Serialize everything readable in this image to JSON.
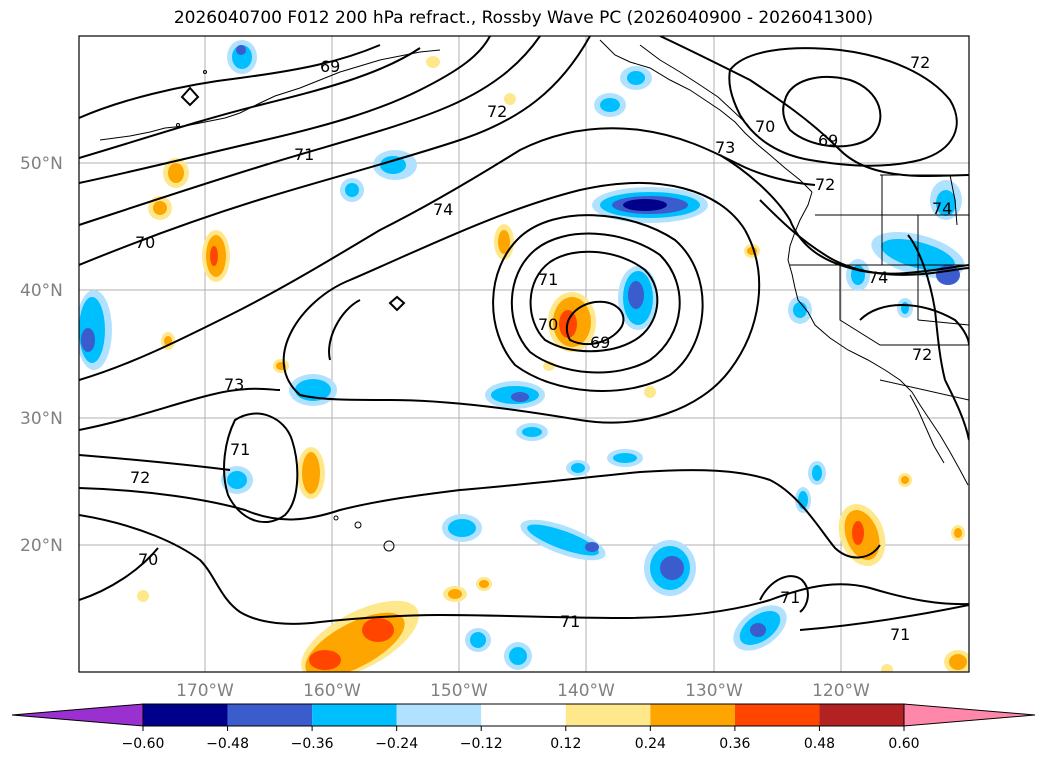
{
  "title": "2026040700 F012 200 hPa refract., Rossby Wave PC (2026040900 - 2026041300)",
  "lat_labels": [
    "50°N",
    "40°N",
    "30°N",
    "20°N"
  ],
  "lon_labels": [
    "170°W",
    "160°W",
    "150°W",
    "140°W",
    "130°W",
    "120°W"
  ],
  "contour_labels": [
    "69",
    "72",
    "71",
    "70",
    "74",
    "71",
    "70",
    "69",
    "73",
    "71",
    "72",
    "70",
    "71",
    "71",
    "71",
    "72",
    "70",
    "69",
    "73",
    "72",
    "74",
    "74",
    "72"
  ],
  "colorbar": {
    "ticks": [
      "−0.60",
      "−0.48",
      "−0.36",
      "−0.24",
      "−0.12",
      "0.12",
      "0.24",
      "0.36",
      "0.48",
      "0.60"
    ],
    "colors": [
      "#9b30d0",
      "#00008b",
      "#3a5ccc",
      "#00bfff",
      "#b0e2ff",
      "#ffffff",
      "#ffe88c",
      "#ffa500",
      "#ff4500",
      "#b22222",
      "#ff88aa"
    ]
  },
  "colors": {
    "neg_dark": "#00008b",
    "neg_mid": "#3a5ccc",
    "neg_light": "#00bfff",
    "neg_pale": "#b0e2ff",
    "pos_pale": "#ffe88c",
    "pos_mid": "#ffa500",
    "pos_strong": "#ff4500",
    "grid": "#b0b0b0",
    "axis_label": "#808080"
  }
}
